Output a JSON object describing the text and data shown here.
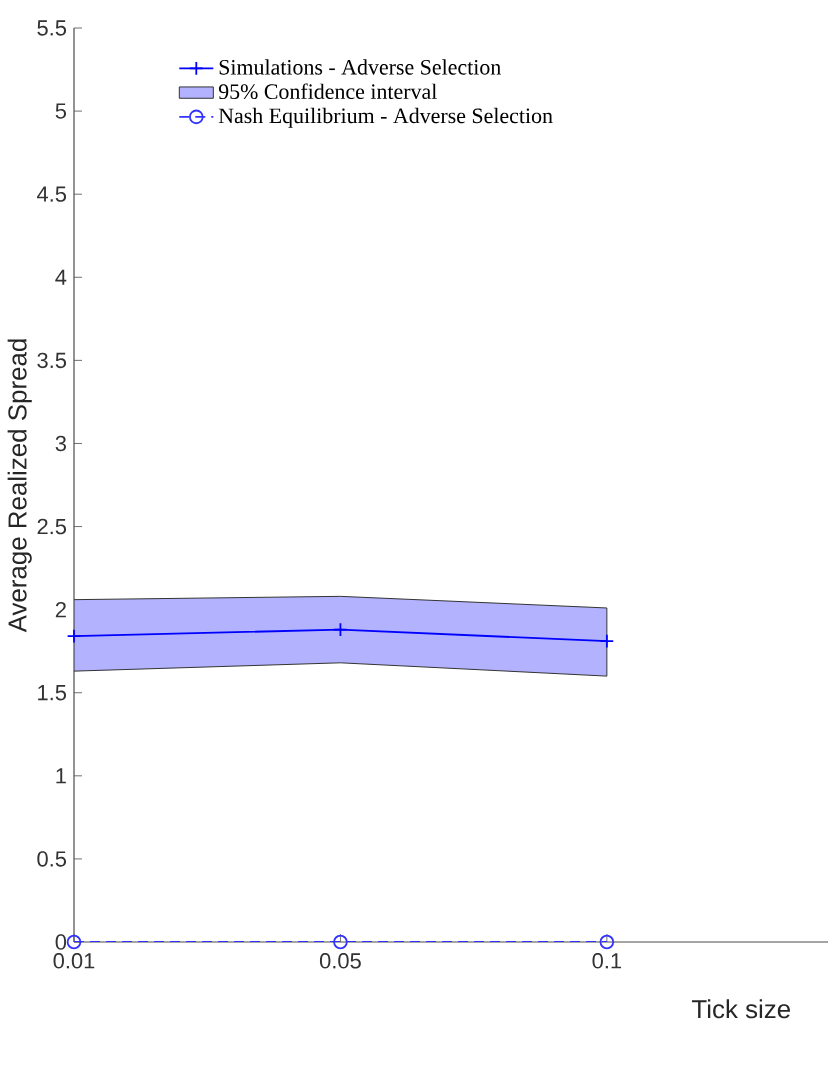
{
  "chart_data": {
    "type": "line",
    "xlabel": "Tick size",
    "ylabel": "Average Realized Spread",
    "categories": [
      "0.01",
      "0.05",
      "0.1"
    ],
    "ylim": [
      0,
      5.5
    ],
    "yticks": [
      0,
      0.5,
      1,
      1.5,
      2,
      2.5,
      3,
      3.5,
      4,
      4.5,
      5,
      5.5
    ],
    "grid": false,
    "legend": "top left",
    "annotations": [
      "95% Confidence interval"
    ],
    "series": [
      {
        "name": "Simulations - Adverse Selection",
        "color": "#0000ff",
        "values": [
          1.84,
          1.88,
          1.81
        ],
        "lower": [
          1.63,
          1.68,
          1.6
        ],
        "upper": [
          2.06,
          2.08,
          2.01
        ],
        "marker": "cross",
        "line_style": "solid"
      },
      {
        "name": "Nash Equilibrium - Adverse Selection",
        "color": "#3333ff",
        "values": [
          0,
          0,
          0
        ],
        "marker": "circle",
        "line_style": "dashed"
      }
    ]
  }
}
